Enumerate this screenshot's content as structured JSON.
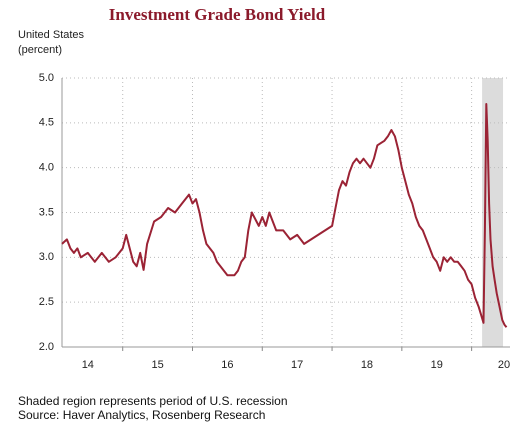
{
  "chart_data": {
    "type": "line",
    "title": "Investment Grade Bond Yield",
    "subtitle": "United States",
    "y_label": "(percent)",
    "notes": [
      "Shaded region represents period of U.S. recession",
      "Source: Haver Analytics, Rosenberg Research"
    ],
    "x": [
      2014.13,
      2014.2,
      2014.25,
      2014.3,
      2014.35,
      2014.4,
      2014.5,
      2014.6,
      2014.7,
      2014.8,
      2014.9,
      2015.0,
      2015.05,
      2015.15,
      2015.2,
      2015.25,
      2015.3,
      2015.35,
      2015.45,
      2015.55,
      2015.65,
      2015.75,
      2015.85,
      2015.95,
      2016.0,
      2016.05,
      2016.1,
      2016.15,
      2016.2,
      2016.25,
      2016.3,
      2016.35,
      2016.4,
      2016.45,
      2016.5,
      2016.6,
      2016.65,
      2016.7,
      2016.75,
      2016.8,
      2016.85,
      2016.95,
      2017.0,
      2017.05,
      2017.1,
      2017.2,
      2017.3,
      2017.4,
      2017.5,
      2017.6,
      2017.7,
      2017.8,
      2017.9,
      2018.0,
      2018.05,
      2018.1,
      2018.15,
      2018.2,
      2018.25,
      2018.3,
      2018.35,
      2018.4,
      2018.45,
      2018.5,
      2018.55,
      2018.6,
      2018.65,
      2018.75,
      2018.8,
      2018.85,
      2018.9,
      2018.95,
      2019.0,
      2019.05,
      2019.1,
      2019.15,
      2019.2,
      2019.25,
      2019.3,
      2019.35,
      2019.4,
      2019.45,
      2019.5,
      2019.55,
      2019.6,
      2019.65,
      2019.7,
      2019.75,
      2019.8,
      2019.85,
      2019.9,
      2019.95,
      2020.0,
      2020.05,
      2020.1,
      2020.17,
      2020.19,
      2020.21,
      2020.23,
      2020.25,
      2020.27,
      2020.3,
      2020.33,
      2020.36,
      2020.4,
      2020.44,
      2020.47,
      2020.5
    ],
    "series": [
      {
        "name": "Investment Grade Bond Yield",
        "color": "#9b2335",
        "values": [
          3.15,
          3.2,
          3.1,
          3.05,
          3.1,
          3.0,
          3.05,
          2.95,
          3.05,
          2.95,
          3.0,
          3.1,
          3.25,
          2.95,
          2.9,
          3.05,
          2.86,
          3.15,
          3.4,
          3.45,
          3.55,
          3.5,
          3.6,
          3.7,
          3.6,
          3.65,
          3.5,
          3.3,
          3.15,
          3.1,
          3.05,
          2.95,
          2.9,
          2.85,
          2.8,
          2.8,
          2.85,
          2.95,
          3.0,
          3.3,
          3.5,
          3.35,
          3.45,
          3.35,
          3.5,
          3.3,
          3.3,
          3.2,
          3.25,
          3.15,
          3.2,
          3.25,
          3.3,
          3.35,
          3.55,
          3.75,
          3.85,
          3.8,
          3.95,
          4.05,
          4.1,
          4.05,
          4.1,
          4.05,
          4.0,
          4.1,
          4.25,
          4.3,
          4.35,
          4.42,
          4.35,
          4.2,
          4.0,
          3.85,
          3.7,
          3.6,
          3.45,
          3.35,
          3.3,
          3.2,
          3.1,
          3.0,
          2.95,
          2.85,
          3.0,
          2.95,
          3.0,
          2.95,
          2.95,
          2.9,
          2.85,
          2.75,
          2.7,
          2.55,
          2.45,
          2.27,
          3.3,
          4.71,
          4.3,
          3.6,
          3.2,
          2.9,
          2.75,
          2.6,
          2.45,
          2.3,
          2.25,
          2.22
        ]
      }
    ],
    "recession": [
      2020.15,
      2020.45
    ],
    "recession_color": "#dcdcdc",
    "xlim": [
      2014.13,
      2020.55
    ],
    "xticks": [
      {
        "value": 2014.5,
        "label": "14"
      },
      {
        "value": 2015.5,
        "label": "15"
      },
      {
        "value": 2016.5,
        "label": "16"
      },
      {
        "value": 2017.5,
        "label": "17"
      },
      {
        "value": 2018.5,
        "label": "18"
      },
      {
        "value": 2019.5,
        "label": "19"
      },
      {
        "value": 2020.5,
        "label": "20"
      }
    ],
    "xgrid": [
      2015,
      2016,
      2017,
      2018,
      2019,
      2020
    ],
    "ylim": [
      2.0,
      5.0
    ],
    "yticks": [
      {
        "value": 2.0,
        "label": "2.0"
      },
      {
        "value": 2.5,
        "label": "2.5"
      },
      {
        "value": 3.0,
        "label": "3.0"
      },
      {
        "value": 3.5,
        "label": "3.5"
      },
      {
        "value": 4.0,
        "label": "4.0"
      },
      {
        "value": 4.5,
        "label": "4.5"
      },
      {
        "value": 5.0,
        "label": "5.0"
      }
    ],
    "grid": true
  }
}
